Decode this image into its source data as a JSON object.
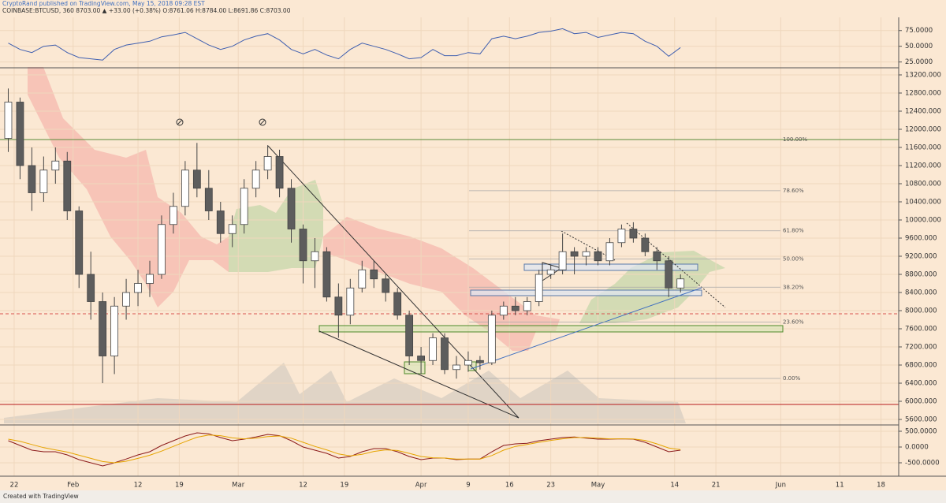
{
  "chart_data": {
    "type": "candlestick",
    "publisher": "CryptoRand published on TradingView.com, May 15, 2018 09:28 EST",
    "symbol_line": "COINBASE:BTCUSD, 360  8703.00 ▲ +33.00 (+0.38%) O:8761.06 H:8784.00 L:8691.86 C:8703.00",
    "footer": "Created with TradingView",
    "x": [
      21,
      23,
      25,
      27,
      29,
      31,
      33,
      35,
      37,
      39,
      41,
      43,
      45,
      47,
      49,
      51,
      53,
      55,
      57,
      59,
      61,
      63,
      65,
      67,
      69,
      71,
      73,
      75,
      77,
      79,
      81,
      83,
      85,
      87,
      89,
      91,
      93,
      95,
      97,
      99,
      101,
      103,
      105,
      107,
      109,
      111,
      113,
      115,
      117,
      119,
      121,
      123,
      125,
      127,
      129,
      131,
      133,
      135
    ],
    "open": [
      11800,
      12600,
      11200,
      10600,
      11100,
      11300,
      10200,
      8800,
      8200,
      7000,
      8100,
      8400,
      8600,
      8800,
      9900,
      10300,
      11100,
      10700,
      10200,
      9700,
      9900,
      10700,
      11100,
      11400,
      10700,
      9800,
      9100,
      9300,
      8300,
      7900,
      8500,
      8900,
      8700,
      8400,
      7900,
      7000,
      6900,
      7400,
      6700,
      6800,
      6900,
      6850,
      7900,
      8100,
      8000,
      8200,
      8800,
      8900,
      9300,
      9200,
      9300,
      9100,
      9500,
      9800,
      9600,
      9300,
      9100,
      8500
    ],
    "high": [
      12900,
      12700,
      11600,
      11400,
      11600,
      11500,
      10300,
      9300,
      8400,
      8300,
      8700,
      8900,
      9100,
      10100,
      10600,
      11300,
      11700,
      11100,
      10400,
      10100,
      10900,
      11300,
      11650,
      11550,
      10900,
      9900,
      9600,
      9400,
      8600,
      8700,
      9100,
      9100,
      8800,
      8500,
      8000,
      7200,
      7500,
      7500,
      7000,
      7100,
      7000,
      8000,
      8200,
      8300,
      8300,
      8900,
      9000,
      9700,
      9400,
      9400,
      9400,
      9600,
      9900,
      9950,
      9700,
      9400,
      9200,
      8800
    ],
    "low": [
      11500,
      10900,
      10200,
      10400,
      10800,
      10000,
      8500,
      7800,
      6400,
      6600,
      7800,
      8100,
      8300,
      8700,
      9700,
      10100,
      10500,
      10000,
      9500,
      9400,
      9700,
      10500,
      10900,
      10500,
      9500,
      8600,
      8500,
      8200,
      7400,
      7700,
      8400,
      8500,
      8200,
      7800,
      6800,
      6600,
      6800,
      6600,
      6500,
      6650,
      6700,
      6800,
      7800,
      7900,
      7900,
      8100,
      8700,
      8800,
      8800,
      9000,
      9000,
      9000,
      9400,
      9500,
      9200,
      8900,
      8300,
      8400
    ],
    "close": [
      12600,
      11200,
      10600,
      11100,
      11300,
      10200,
      8800,
      8200,
      7000,
      8100,
      8400,
      8600,
      8800,
      9900,
      10300,
      11100,
      10700,
      10200,
      9700,
      9900,
      10700,
      11100,
      11400,
      10700,
      9800,
      9100,
      9300,
      8300,
      7900,
      8500,
      8900,
      8700,
      8400,
      7900,
      7000,
      6900,
      7400,
      6700,
      6800,
      6900,
      6850,
      7900,
      8100,
      8000,
      8200,
      8800,
      8900,
      9300,
      9200,
      9300,
      9100,
      9500,
      9800,
      9600,
      9300,
      9100,
      8500,
      8700
    ],
    "up_color": "#ffffff",
    "down_color": "#5d5d5d",
    "xlim": [
      19.6,
      172
    ],
    "xticks": [
      {
        "value": 22,
        "label": "22"
      },
      {
        "value": 32,
        "label": "Feb"
      },
      {
        "value": 43,
        "label": "12"
      },
      {
        "value": 50,
        "label": "19"
      },
      {
        "value": 60,
        "label": "Mar"
      },
      {
        "value": 71,
        "label": "12"
      },
      {
        "value": 78,
        "label": "19"
      },
      {
        "value": 91,
        "label": "Apr"
      },
      {
        "value": 99,
        "label": "9"
      },
      {
        "value": 106,
        "label": "16"
      },
      {
        "value": 113,
        "label": "23"
      },
      {
        "value": 121,
        "label": "May"
      },
      {
        "value": 134,
        "label": "14"
      },
      {
        "value": 141,
        "label": "21"
      },
      {
        "value": 152,
        "label": "Jun"
      },
      {
        "value": 162,
        "label": "11"
      },
      {
        "value": 169,
        "label": "18"
      }
    ],
    "ylim": [
      5496,
      13339
    ],
    "yticks": [
      {
        "value": 5600,
        "label": "5600.000"
      },
      {
        "value": 6000,
        "label": "6000.000"
      },
      {
        "value": 6400,
        "label": "6400.000"
      },
      {
        "value": 6800,
        "label": "6800.000"
      },
      {
        "value": 7200,
        "label": "7200.000"
      },
      {
        "value": 7600,
        "label": "7600.000"
      },
      {
        "value": 8000,
        "label": "8000.000"
      },
      {
        "value": 8400,
        "label": "8400.000"
      },
      {
        "value": 8800,
        "label": "8800.000"
      },
      {
        "value": 9200,
        "label": "9200.000"
      },
      {
        "value": 9600,
        "label": "9600.000"
      },
      {
        "value": 10000,
        "label": "10000.000"
      },
      {
        "value": 10400,
        "label": "10400.000"
      },
      {
        "value": 10800,
        "label": "10800.000"
      },
      {
        "value": 11200,
        "label": "11200.000"
      },
      {
        "value": 11600,
        "label": "11600.000"
      },
      {
        "value": 12000,
        "label": "12000.000"
      },
      {
        "value": 12400,
        "label": "12400.000"
      },
      {
        "value": 12800,
        "label": "12800.000"
      },
      {
        "value": 13200,
        "label": "13200.000"
      }
    ],
    "grid": true,
    "fib_levels": [
      {
        "label": "100.00%",
        "value": 11774
      },
      {
        "label": "78.60%",
        "value": 10646
      },
      {
        "label": "61.80%",
        "value": 9761
      },
      {
        "label": "50.00%",
        "value": 9139
      },
      {
        "label": "38.20%",
        "value": 8517
      },
      {
        "label": "23.60%",
        "value": 7748
      },
      {
        "label": "0.00%",
        "value": 6504
      }
    ],
    "rsi": {
      "color": "#3f5fb0",
      "ylim": [
        17,
        96
      ],
      "yticks": [
        {
          "value": 25,
          "label": "25.0000"
        },
        {
          "value": 50,
          "label": "50.0000"
        },
        {
          "value": 75,
          "label": "75.0000"
        }
      ],
      "values": [
        55,
        45,
        40,
        50,
        52,
        40,
        32,
        30,
        28,
        45,
        52,
        55,
        58,
        65,
        68,
        72,
        62,
        52,
        45,
        50,
        60,
        66,
        70,
        60,
        45,
        38,
        45,
        36,
        30,
        45,
        55,
        50,
        45,
        38,
        30,
        32,
        45,
        35,
        35,
        40,
        38,
        62,
        66,
        62,
        66,
        72,
        74,
        78,
        70,
        72,
        64,
        68,
        72,
        70,
        58,
        50,
        34,
        48
      ]
    },
    "macd": {
      "ylim": [
        -900,
        675
      ],
      "yticks": [
        {
          "value": -500,
          "label": "-500.0000"
        },
        {
          "value": 0,
          "label": "0.0000"
        },
        {
          "value": 500,
          "label": "500.0000"
        }
      ],
      "series": [
        {
          "color": "#8b1a1a",
          "values": [
            200,
            50,
            -100,
            -150,
            -150,
            -250,
            -400,
            -500,
            -600,
            -500,
            -380,
            -250,
            -150,
            50,
            200,
            350,
            450,
            420,
            300,
            200,
            250,
            320,
            400,
            360,
            200,
            0,
            -100,
            -200,
            -350,
            -300,
            -150,
            -50,
            -50,
            -150,
            -300,
            -400,
            -350,
            -350,
            -400,
            -380,
            -380,
            -150,
            50,
            100,
            120,
            200,
            250,
            300,
            320,
            280,
            250,
            250,
            260,
            250,
            150,
            0,
            -150,
            -100
          ]
        },
        {
          "color": "#e6a400",
          "values": [
            250,
            180,
            80,
            -20,
            -90,
            -160,
            -260,
            -360,
            -460,
            -500,
            -450,
            -360,
            -260,
            -130,
            20,
            170,
            310,
            380,
            360,
            290,
            260,
            280,
            330,
            350,
            280,
            150,
            20,
            -90,
            -220,
            -280,
            -230,
            -140,
            -90,
            -110,
            -200,
            -300,
            -340,
            -350,
            -380,
            -380,
            -380,
            -270,
            -100,
            20,
            80,
            150,
            210,
            260,
            300,
            300,
            280,
            260,
            260,
            255,
            210,
            100,
            -30,
            -80
          ]
        }
      ]
    }
  }
}
